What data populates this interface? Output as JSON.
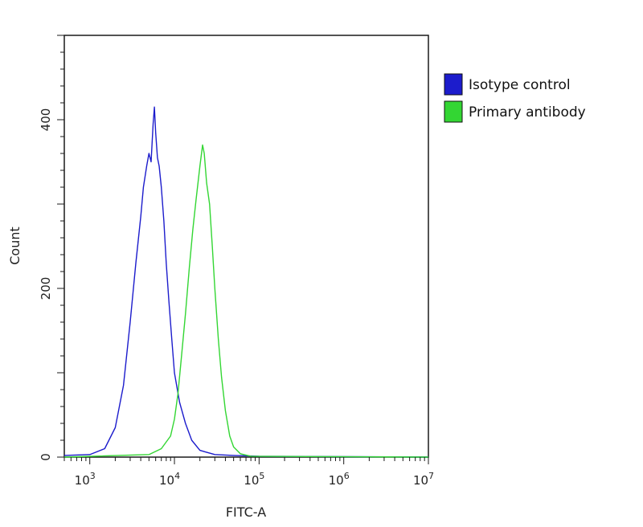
{
  "chart_data": {
    "type": "line",
    "title": "",
    "xlabel": "FITC-A",
    "ylabel": "Count",
    "x_scale": "log",
    "xlim": [
      500,
      10000000
    ],
    "ylim": [
      0,
      500
    ],
    "x_ticks": [
      {
        "value": 1000,
        "base": "10",
        "exp": "3"
      },
      {
        "value": 10000,
        "base": "10",
        "exp": "4"
      },
      {
        "value": 100000,
        "base": "10",
        "exp": "5"
      },
      {
        "value": 1000000,
        "base": "10",
        "exp": "6"
      },
      {
        "value": 10000000,
        "base": "10",
        "exp": "7"
      }
    ],
    "y_ticks": [
      0,
      200,
      400
    ],
    "grid": false,
    "legend": "top-right",
    "series": [
      {
        "name": "Isotype control",
        "color": "#1c1ccc",
        "x": [
          500,
          1000,
          1500,
          2000,
          2500,
          3000,
          3500,
          4000,
          4300,
          4700,
          5000,
          5300,
          5600,
          5800,
          6000,
          6300,
          6600,
          7000,
          7500,
          8000,
          8600,
          9300,
          10000,
          11500,
          13500,
          16000,
          20000,
          30000,
          50000,
          100000,
          10000000
        ],
        "y": [
          2,
          3,
          10,
          35,
          85,
          160,
          230,
          285,
          320,
          345,
          360,
          350,
          395,
          415,
          385,
          355,
          345,
          320,
          280,
          230,
          185,
          140,
          100,
          65,
          40,
          20,
          8,
          3,
          2,
          1,
          0
        ]
      },
      {
        "name": "Primary antibody",
        "color": "#33d633",
        "x": [
          500,
          5000,
          7000,
          9000,
          10000,
          11000,
          12000,
          13500,
          15000,
          16500,
          18000,
          20000,
          21500,
          22500,
          24000,
          26000,
          28000,
          30000,
          33000,
          36000,
          40000,
          45000,
          50000,
          60000,
          80000,
          10000000
        ],
        "y": [
          0,
          3,
          10,
          25,
          45,
          75,
          115,
          170,
          225,
          270,
          305,
          345,
          370,
          360,
          325,
          300,
          250,
          200,
          140,
          95,
          55,
          25,
          12,
          4,
          1,
          0
        ]
      }
    ]
  }
}
